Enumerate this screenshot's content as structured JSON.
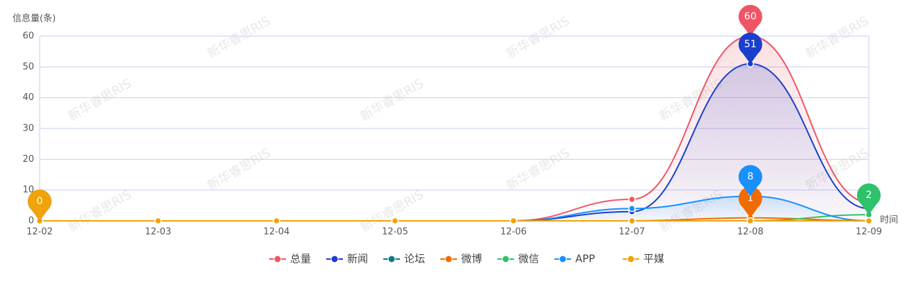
{
  "chart_data": {
    "type": "line",
    "smooth": true,
    "y_label": "信息量(条)",
    "x_label": "时间",
    "watermark": "新华睿思RIS",
    "categories": [
      "12-02",
      "12-03",
      "12-04",
      "12-05",
      "12-06",
      "12-07",
      "12-08",
      "12-09"
    ],
    "ylim": [
      0,
      60
    ],
    "yticks": [
      0,
      10,
      20,
      30,
      40,
      50,
      60
    ],
    "grid": true,
    "legend": "bottom",
    "series": [
      {
        "name": "总量",
        "color": "#ee5566",
        "area": true,
        "values": [
          0,
          0,
          0,
          0,
          0,
          7,
          60,
          6
        ]
      },
      {
        "name": "新闻",
        "color": "#1a3fcc",
        "area": true,
        "values": [
          0,
          0,
          0,
          0,
          0,
          3,
          51,
          4
        ]
      },
      {
        "name": "论坛",
        "color": "#0e7c86",
        "area": false,
        "values": [
          0,
          0,
          0,
          0,
          0,
          0,
          0,
          0
        ]
      },
      {
        "name": "微博",
        "color": "#ef6c00",
        "area": false,
        "values": [
          0,
          0,
          0,
          0,
          0,
          0,
          1,
          0
        ]
      },
      {
        "name": "微信",
        "color": "#2ec26a",
        "area": false,
        "values": [
          0,
          0,
          0,
          0,
          0,
          0,
          0,
          2
        ]
      },
      {
        "name": "APP",
        "color": "#1890ff",
        "area": true,
        "values": [
          0,
          0,
          0,
          0,
          0,
          4,
          8,
          0
        ]
      },
      {
        "name": "平媒",
        "color": "#f0a30a",
        "area": false,
        "values": [
          0,
          0,
          0,
          0,
          0,
          0,
          0,
          0
        ]
      }
    ]
  }
}
